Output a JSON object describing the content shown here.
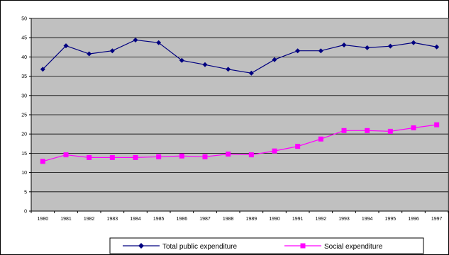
{
  "chart_data": {
    "type": "line",
    "title": "",
    "xlabel": "",
    "ylabel": "",
    "categories": [
      "1980",
      "1981",
      "1982",
      "1983",
      "1984",
      "1985",
      "1986",
      "1987",
      "1988",
      "1989",
      "1990",
      "1991",
      "1992",
      "1993",
      "1994",
      "1995",
      "1996",
      "1997"
    ],
    "ylim": [
      0,
      50
    ],
    "yticks": [
      0,
      5,
      10,
      15,
      20,
      25,
      30,
      35,
      40,
      45,
      50
    ],
    "grid": true,
    "legend_position": "bottom",
    "plot_background": "#c0c0c0",
    "series": [
      {
        "name": "Total public expenditure",
        "color": "#000080",
        "marker": "diamond",
        "values": [
          36.8,
          42.9,
          40.8,
          41.6,
          44.4,
          43.7,
          39.1,
          38.0,
          36.8,
          35.8,
          39.3,
          41.6,
          41.6,
          43.1,
          42.4,
          42.8,
          43.7,
          42.6
        ]
      },
      {
        "name": "Social expenditure",
        "color": "#ff00ff",
        "marker": "square",
        "values": [
          12.9,
          14.6,
          13.9,
          13.9,
          13.9,
          14.1,
          14.3,
          14.1,
          14.8,
          14.6,
          15.6,
          16.8,
          18.7,
          20.9,
          20.9,
          20.7,
          21.6,
          22.4
        ]
      }
    ]
  }
}
